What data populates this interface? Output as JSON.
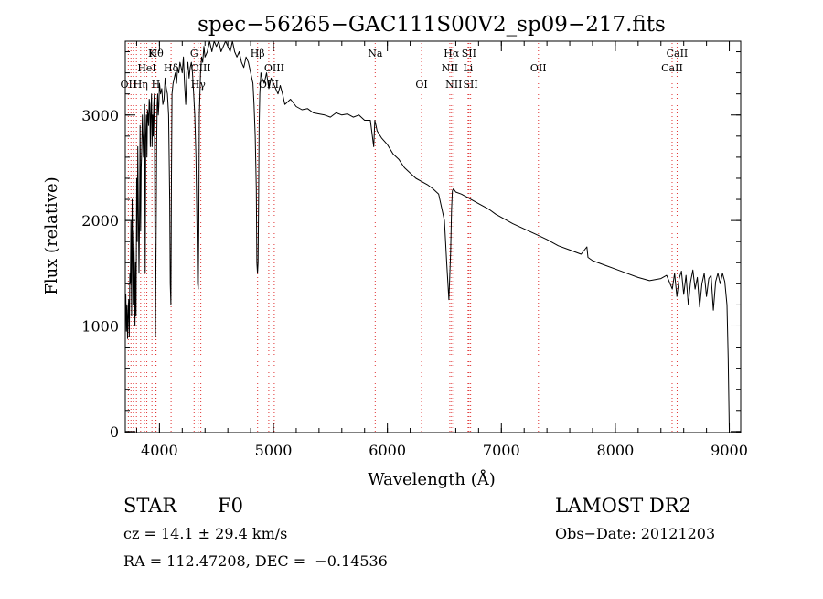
{
  "chart_data": {
    "type": "line",
    "title": "spec−56265−GAC111S00V2_sp09−217.fits",
    "xlabel": "Wavelength (Å)",
    "ylabel": "Flux (relative)",
    "xlim": [
      3700,
      9100
    ],
    "ylim": [
      -10,
      3700
    ],
    "x_major_ticks": [
      4000,
      5000,
      6000,
      7000,
      8000,
      9000
    ],
    "x_minor_step": 200,
    "y_major_ticks": [
      0,
      1000,
      2000,
      3000
    ],
    "y_minor_step": 200,
    "x_tick_labels": [
      "4000",
      "5000",
      "6000",
      "7000",
      "8000",
      "9000"
    ],
    "y_tick_labels": [
      "0",
      "1000",
      "2000",
      "3000"
    ],
    "grid": false,
    "series": [
      {
        "line_color": "#000000",
        "x": [
          3700,
          3705,
          3710,
          3715,
          3720,
          3725,
          3730,
          3735,
          3740,
          3745,
          3750,
          3755,
          3760,
          3765,
          3770,
          3775,
          3780,
          3785,
          3790,
          3795,
          3800,
          3805,
          3810,
          3815,
          3820,
          3825,
          3830,
          3835,
          3840,
          3845,
          3850,
          3855,
          3860,
          3865,
          3870,
          3875,
          3880,
          3885,
          3890,
          3895,
          3900,
          3905,
          3910,
          3915,
          3920,
          3925,
          3930,
          3935,
          3940,
          3945,
          3950,
          3955,
          3960,
          3965,
          3970,
          3975,
          3980,
          3985,
          3990,
          3995,
          4000,
          4010,
          4020,
          4030,
          4040,
          4050,
          4060,
          4070,
          4080,
          4090,
          4095,
          4100,
          4105,
          4110,
          4120,
          4130,
          4140,
          4150,
          4160,
          4170,
          4180,
          4190,
          4200,
          4210,
          4220,
          4230,
          4240,
          4250,
          4260,
          4270,
          4280,
          4290,
          4300,
          4310,
          4320,
          4330,
          4335,
          4340,
          4345,
          4350,
          4360,
          4370,
          4380,
          4390,
          4400,
          4420,
          4440,
          4460,
          4480,
          4500,
          4520,
          4540,
          4560,
          4580,
          4600,
          4620,
          4640,
          4660,
          4680,
          4700,
          4720,
          4740,
          4760,
          4780,
          4800,
          4820,
          4830,
          4840,
          4850,
          4855,
          4860,
          4865,
          4870,
          4875,
          4880,
          4890,
          4900,
          4920,
          4940,
          4960,
          4980,
          5000,
          5020,
          5040,
          5060,
          5080,
          5100,
          5150,
          5200,
          5250,
          5300,
          5350,
          5400,
          5450,
          5500,
          5550,
          5600,
          5650,
          5700,
          5750,
          5800,
          5850,
          5880,
          5890,
          5900,
          5910,
          5950,
          6000,
          6050,
          6100,
          6150,
          6200,
          6250,
          6300,
          6350,
          6400,
          6450,
          6500,
          6520,
          6540,
          6555,
          6563,
          6570,
          6580,
          6600,
          6650,
          6700,
          6750,
          6800,
          6850,
          6900,
          6950,
          7000,
          7100,
          7200,
          7300,
          7400,
          7500,
          7600,
          7700,
          7750,
          7760,
          7800,
          7900,
          8000,
          8100,
          8200,
          8300,
          8400,
          8450,
          8500,
          8520,
          8540,
          8560,
          8580,
          8600,
          8620,
          8640,
          8660,
          8680,
          8700,
          8720,
          8740,
          8760,
          8780,
          8800,
          8820,
          8840,
          8860,
          8880,
          8900,
          8920,
          8940,
          8960,
          8980,
          8990,
          9000
        ],
        "y": [
          1050,
          1300,
          950,
          1200,
          880,
          1100,
          1250,
          900,
          1500,
          1400,
          2000,
          1100,
          2200,
          1700,
          1200,
          1900,
          1500,
          1000,
          1600,
          1100,
          2400,
          1800,
          2700,
          2100,
          1500,
          2000,
          2900,
          1900,
          2500,
          2700,
          3000,
          2800,
          2600,
          2900,
          3100,
          1500,
          2800,
          3000,
          2600,
          3050,
          3000,
          2900,
          3150,
          3100,
          2700,
          3000,
          3200,
          2700,
          3000,
          2800,
          3100,
          3200,
          2000,
          900,
          1800,
          2700,
          3100,
          3200,
          3000,
          3100,
          3300,
          3200,
          3250,
          3100,
          3150,
          3350,
          3250,
          3200,
          3000,
          2200,
          1400,
          1200,
          2400,
          3200,
          3300,
          3350,
          3400,
          3300,
          3450,
          3400,
          3500,
          3450,
          3400,
          3550,
          3300,
          3100,
          3400,
          3500,
          3350,
          3450,
          3500,
          3400,
          3200,
          3000,
          2600,
          1900,
          1400,
          1350,
          1900,
          3000,
          3400,
          3550,
          3500,
          3650,
          3550,
          3600,
          3700,
          3600,
          3700,
          3650,
          3700,
          3600,
          3650,
          3700,
          3650,
          3600,
          3700,
          3600,
          3550,
          3600,
          3500,
          3450,
          3550,
          3500,
          3400,
          3300,
          3100,
          2800,
          2300,
          1600,
          1500,
          1600,
          2200,
          2900,
          3200,
          3400,
          3350,
          3300,
          3400,
          3250,
          3350,
          3300,
          3250,
          3200,
          3280,
          3200,
          3100,
          3150,
          3080,
          3050,
          3060,
          3020,
          3010,
          3000,
          2980,
          3020,
          3000,
          3010,
          2980,
          3000,
          2950,
          2950,
          2700,
          2950,
          2900,
          2850,
          2780,
          2720,
          2630,
          2580,
          2500,
          2450,
          2400,
          2370,
          2340,
          2300,
          2250,
          2000,
          1600,
          1250,
          1700,
          2100,
          2280,
          2300,
          2270,
          2250,
          2220,
          2190,
          2160,
          2130,
          2100,
          2060,
          2030,
          1970,
          1920,
          1870,
          1820,
          1760,
          1720,
          1680,
          1750,
          1650,
          1620,
          1580,
          1540,
          1500,
          1460,
          1430,
          1450,
          1480,
          1350,
          1500,
          1280,
          1450,
          1520,
          1300,
          1480,
          1200,
          1420,
          1530,
          1350,
          1460,
          1180,
          1400,
          1500,
          1280,
          1450,
          1480,
          1150,
          1420,
          1500,
          1400,
          1500,
          1420,
          1200,
          700,
          20
        ]
      }
    ],
    "line_markers": [
      {
        "x": 3727,
        "label": "OII",
        "row": 3
      },
      {
        "x": 3750,
        "label": "",
        "row": 0
      },
      {
        "x": 3771,
        "label": "",
        "row": 0
      },
      {
        "x": 3798,
        "label": "",
        "row": 0
      },
      {
        "x": 3835,
        "label": "Hη",
        "row": 3
      },
      {
        "x": 3869,
        "label": "",
        "row": 0
      },
      {
        "x": 3889,
        "label": "HeI",
        "row": 2
      },
      {
        "x": 3934,
        "label": "K",
        "row": 1
      },
      {
        "x": 3970,
        "label": "Hθ",
        "row": 1
      },
      {
        "x": 3968,
        "label": "H",
        "row": 3
      },
      {
        "x": 4102,
        "label": "Hδ",
        "row": 2
      },
      {
        "x": 4304,
        "label": "G",
        "row": 1
      },
      {
        "x": 4340,
        "label": "Hγ",
        "row": 3
      },
      {
        "x": 4363,
        "label": "OIII",
        "row": 2
      },
      {
        "x": 4861,
        "label": "Hβ",
        "row": 1
      },
      {
        "x": 4959,
        "label": "OIII",
        "row": 3
      },
      {
        "x": 5007,
        "label": "OIII",
        "row": 2
      },
      {
        "x": 5893,
        "label": "Na",
        "row": 1
      },
      {
        "x": 6300,
        "label": "OI",
        "row": 3
      },
      {
        "x": 6548,
        "label": "NII",
        "row": 2
      },
      {
        "x": 6563,
        "label": "Hα",
        "row": 1
      },
      {
        "x": 6583,
        "label": "NII",
        "row": 3
      },
      {
        "x": 6708,
        "label": "Li",
        "row": 2
      },
      {
        "x": 6716,
        "label": "SII",
        "row": 1
      },
      {
        "x": 6730,
        "label": "SII",
        "row": 3
      },
      {
        "x": 7325,
        "label": "OII",
        "row": 2
      },
      {
        "x": 8498,
        "label": "CaII",
        "row": 2
      },
      {
        "x": 8542,
        "label": "CaII",
        "row": 1
      }
    ],
    "line_marker_color": "#e03030"
  },
  "info": {
    "object_class": "STAR",
    "subclass": "F0",
    "survey": "LAMOST DR2",
    "redshift": "cz = 14.1 ± 29.4 km/s",
    "obs_date": "Obs−Date: 20121203",
    "coords": "RA = 112.47208, DEC =  −0.14536"
  }
}
